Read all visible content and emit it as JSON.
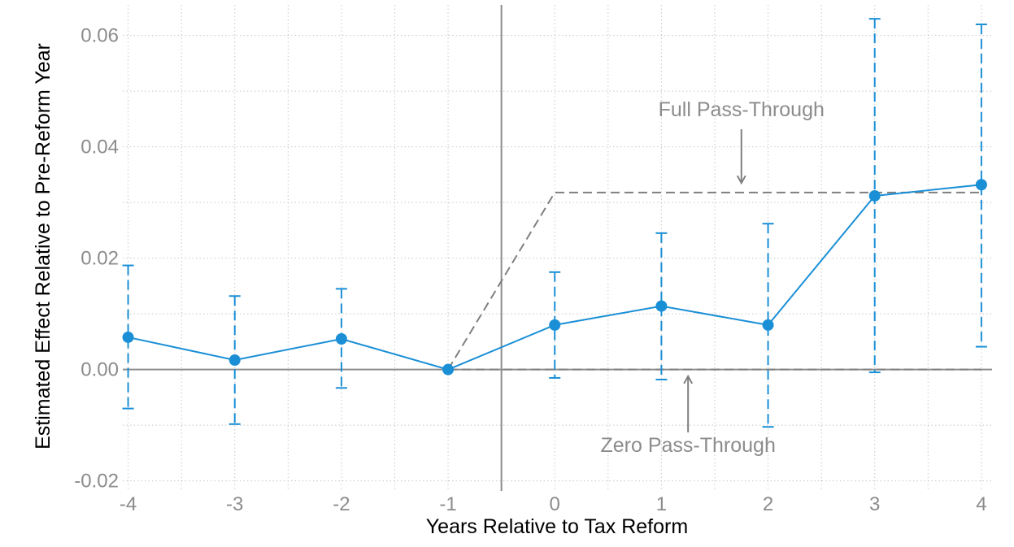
{
  "chart_data": {
    "type": "line",
    "title": "",
    "xlabel": "Years Relative to Tax Reform",
    "ylabel": "Estimated Effect Relative to Pre-Reform Year",
    "x": [
      -4,
      -3,
      -2,
      -1,
      0,
      1,
      2,
      3,
      4
    ],
    "xlim": [
      -4.05,
      4.1
    ],
    "ylim": [
      -0.0218,
      0.0655
    ],
    "xticks": [
      -4,
      -3,
      -2,
      -1,
      0,
      1,
      2,
      3,
      4
    ],
    "xtick_labels": [
      "-4",
      "-3",
      "-2",
      "-1",
      "0",
      "1",
      "2",
      "3",
      "4"
    ],
    "yticks": [
      -0.02,
      0,
      0.02,
      0.04,
      0.06
    ],
    "ytick_labels": [
      "-0.02",
      "0.00",
      "0.02",
      "0.04",
      "0.06"
    ],
    "grid": true,
    "series": [
      {
        "values": [
          0.0058,
          0.0017,
          0.0055,
          0.0,
          0.008,
          0.0114,
          0.008,
          0.0312,
          0.0332
        ],
        "ci_lower": [
          -0.007,
          -0.0098,
          -0.0033,
          null,
          -0.0015,
          -0.0018,
          -0.0103,
          -0.0005,
          0.0041
        ],
        "ci_upper": [
          0.0187,
          0.0132,
          0.0145,
          null,
          0.0175,
          0.0245,
          0.0262,
          0.063,
          0.062
        ],
        "color": "#1a8fd6"
      }
    ],
    "reference_lines": [
      {
        "label": "Full Pass-Through",
        "x": [
          -1,
          0,
          4
        ],
        "y": [
          0,
          0.0318,
          0.0318
        ],
        "style": "dashed",
        "color": "#7f7f7f"
      },
      {
        "label": "Zero Pass-Through",
        "x": [
          -1,
          4
        ],
        "y": [
          0,
          0
        ],
        "style": "dashed",
        "color": "#7f7f7f"
      }
    ],
    "zero_line_y": 0,
    "vertical_line_x": -0.5,
    "annotations": [
      {
        "text": "Full Pass-Through",
        "x": 1.75,
        "y": 0.0455,
        "arrow_to": [
          1.75,
          0.0335
        ]
      },
      {
        "text": "Zero Pass-Through",
        "x": 1.25,
        "y": -0.0148,
        "arrow_to": [
          1.25,
          -0.0012
        ]
      }
    ]
  },
  "colors": {
    "series": "#1a8fd6",
    "reference": "#7f7f7f",
    "axis_line": "#8c8c8c",
    "grid": "#c8c8c8",
    "tick_text": "#8c8c8c"
  }
}
